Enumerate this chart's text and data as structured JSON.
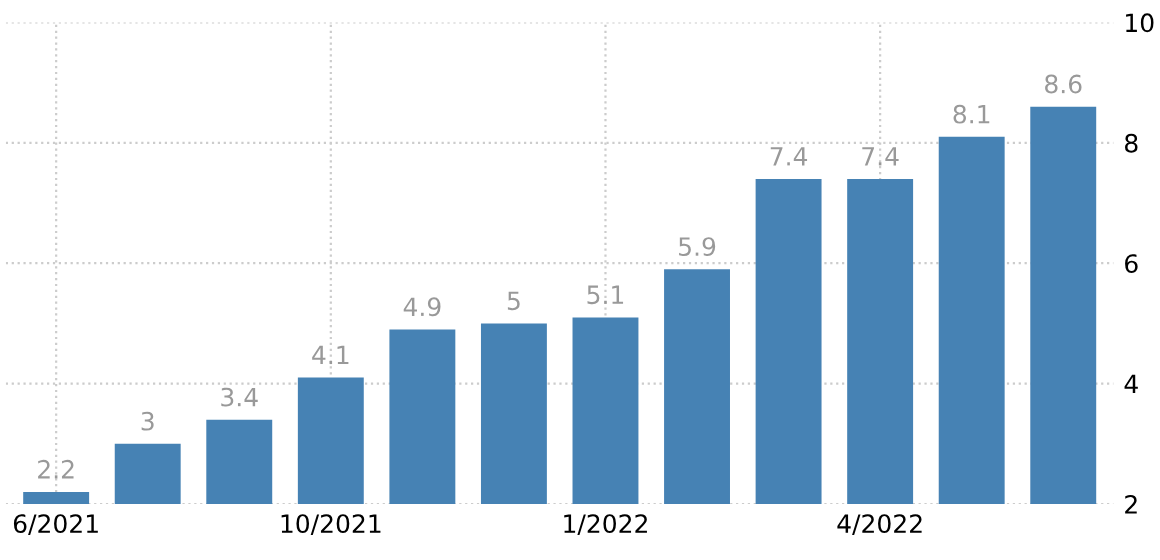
{
  "chart_data": {
    "type": "bar",
    "categories": [
      "6/2021",
      null,
      null,
      "10/2021",
      null,
      null,
      "1/2022",
      null,
      null,
      "4/2022",
      null,
      null
    ],
    "values": [
      2.2,
      3,
      3.4,
      4.1,
      4.9,
      5,
      5.1,
      5.9,
      7.4,
      7.4,
      8.1,
      8.6
    ],
    "color": "#4682b4",
    "ylim": [
      2,
      10
    ],
    "yticks": [
      2,
      4,
      6,
      8,
      10
    ],
    "grid": true,
    "data_labels": true
  }
}
